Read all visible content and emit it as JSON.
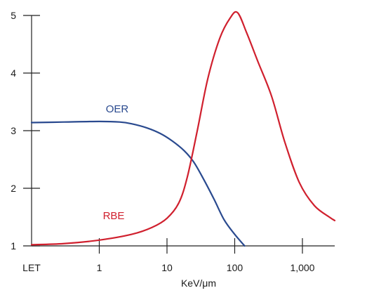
{
  "chart_data": {
    "type": "line",
    "xlabel": "KeV/μm",
    "ylabel": "",
    "x_scale": "log",
    "x_first_tick_label": "LET",
    "x_ticks": [
      {
        "value": 1,
        "label": "1"
      },
      {
        "value": 10,
        "label": "10"
      },
      {
        "value": 100,
        "label": "100"
      },
      {
        "value": 1000,
        "label": "1,000"
      }
    ],
    "xlim": [
      0.1,
      3000
    ],
    "ylim": [
      1,
      5
    ],
    "y_ticks": [
      {
        "value": 1,
        "label": "1"
      },
      {
        "value": 2,
        "label": "2"
      },
      {
        "value": 3,
        "label": "3"
      },
      {
        "value": 4,
        "label": "4"
      },
      {
        "value": 5,
        "label": "5"
      }
    ],
    "grid": false,
    "legend": "none",
    "series": [
      {
        "name": "OER",
        "color": "#2a4a8f",
        "points": [
          [
            0.1,
            3.14
          ],
          [
            0.3,
            3.15
          ],
          [
            1,
            3.16
          ],
          [
            2,
            3.15
          ],
          [
            3,
            3.12
          ],
          [
            5,
            3.05
          ],
          [
            8,
            2.95
          ],
          [
            12,
            2.82
          ],
          [
            18,
            2.65
          ],
          [
            25,
            2.45
          ],
          [
            35,
            2.15
          ],
          [
            50,
            1.8
          ],
          [
            70,
            1.45
          ],
          [
            100,
            1.2
          ],
          [
            140,
            1.0
          ]
        ]
      },
      {
        "name": "RBE",
        "color": "#d0202e",
        "points": [
          [
            0.1,
            1.02
          ],
          [
            0.3,
            1.04
          ],
          [
            1,
            1.1
          ],
          [
            3,
            1.2
          ],
          [
            6,
            1.32
          ],
          [
            10,
            1.48
          ],
          [
            15,
            1.75
          ],
          [
            20,
            2.2
          ],
          [
            28,
            3.0
          ],
          [
            40,
            3.9
          ],
          [
            60,
            4.6
          ],
          [
            85,
            4.95
          ],
          [
            110,
            5.05
          ],
          [
            150,
            4.7
          ],
          [
            220,
            4.2
          ],
          [
            350,
            3.6
          ],
          [
            550,
            2.8
          ],
          [
            900,
            2.1
          ],
          [
            1500,
            1.7
          ],
          [
            2500,
            1.5
          ],
          [
            3000,
            1.44
          ]
        ]
      }
    ]
  }
}
